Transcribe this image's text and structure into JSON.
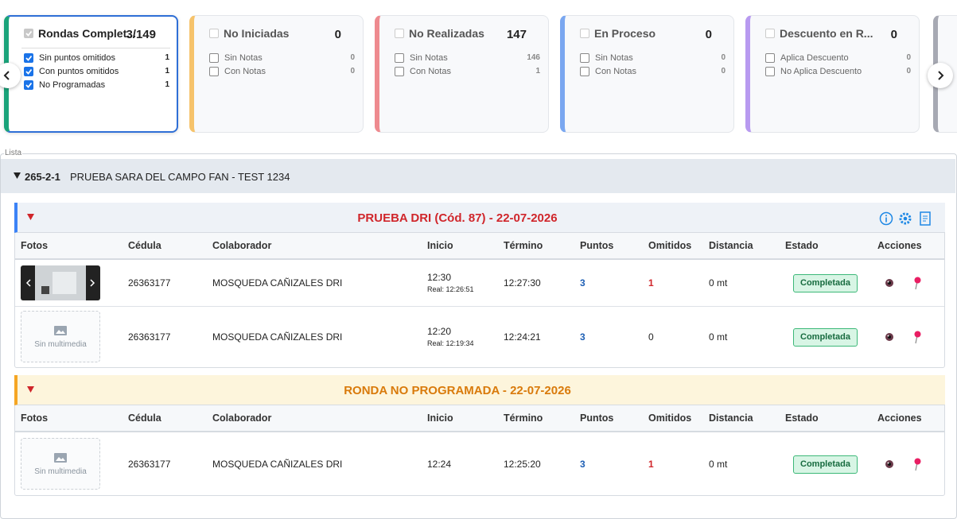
{
  "cards": [
    {
      "title": "Rondas Complet...",
      "count": "3/149",
      "color": "#1aa37a",
      "selected": true,
      "title_checked": true,
      "items": [
        {
          "label": "Sin puntos omitidos",
          "count": 1,
          "checked": true
        },
        {
          "label": "Con puntos omitidos",
          "count": 1,
          "checked": true
        },
        {
          "label": "No Programadas",
          "count": 1,
          "checked": true
        }
      ]
    },
    {
      "title": "No Iniciadas",
      "count": "0",
      "color": "#f6c36b",
      "selected": false,
      "title_checked": false,
      "items": [
        {
          "label": "Sin Notas",
          "count": 0,
          "checked": false
        },
        {
          "label": "Con Notas",
          "count": 0,
          "checked": false
        }
      ]
    },
    {
      "title": "No Realizadas",
      "count": "147",
      "color": "#ee8a8f",
      "selected": false,
      "title_checked": false,
      "items": [
        {
          "label": "Sin Notas",
          "count": 146,
          "checked": false
        },
        {
          "label": "Con Notas",
          "count": 1,
          "checked": false
        }
      ]
    },
    {
      "title": "En Proceso",
      "count": "0",
      "color": "#7aa7f0",
      "selected": false,
      "title_checked": false,
      "items": [
        {
          "label": "Sin Notas",
          "count": 0,
          "checked": false
        },
        {
          "label": "Con Notas",
          "count": 0,
          "checked": false
        }
      ]
    },
    {
      "title": "Descuento en R...",
      "count": "0",
      "color": "#b89af0",
      "selected": false,
      "title_checked": false,
      "items": [
        {
          "label": "Aplica Descuento",
          "count": 0,
          "checked": false
        },
        {
          "label": "No Aplica Descuento",
          "count": 0,
          "checked": false
        }
      ]
    }
  ],
  "list_label": "Lista",
  "group": {
    "code": "265-2-1",
    "name": "PRUEBA SARA DEL CAMPO FAN - TEST 1234"
  },
  "columns": [
    "Fotos",
    "Cédula",
    "Colaborador",
    "Inicio",
    "Término",
    "Puntos",
    "Omitidos",
    "Distancia",
    "Estado",
    "Acciones"
  ],
  "sections": [
    {
      "title": "PRUEBA DRI (Cód. 87) - 22-07-2026",
      "color": "#d0262b",
      "accent": "#3b82f6",
      "background": "#eef2f7",
      "tools": true,
      "rows": [
        {
          "has_photo": true,
          "cedula": "26363177",
          "colaborador": "MOSQUEDA CAÑIZALES DRI",
          "inicio": "12:30",
          "inicio_real": "Real: 12:26:51",
          "termino": "12:27:30",
          "puntos": 3,
          "omitidos": 1,
          "distancia": "0 mt",
          "estado": "Completada"
        },
        {
          "has_photo": false,
          "photo_text": "Sin multimedia",
          "cedula": "26363177",
          "colaborador": "MOSQUEDA CAÑIZALES DRI",
          "inicio": "12:20",
          "inicio_real": "Real: 12:19:34",
          "termino": "12:24:21",
          "puntos": 3,
          "omitidos": 0,
          "distancia": "0 mt",
          "estado": "Completada"
        }
      ]
    },
    {
      "title": "RONDA NO PROGRAMADA - 22-07-2026",
      "color": "#d97a0b",
      "accent": "#f5a623",
      "background": "#fdf5dc",
      "tools": false,
      "rows": [
        {
          "has_photo": false,
          "photo_text": "Sin multimedia",
          "cedula": "26363177",
          "colaborador": "MOSQUEDA CAÑIZALES DRI",
          "inicio": "12:24",
          "termino": "12:25:20",
          "puntos": 3,
          "omitidos": 1,
          "distancia": "0 mt",
          "estado": "Completada"
        }
      ]
    }
  ]
}
